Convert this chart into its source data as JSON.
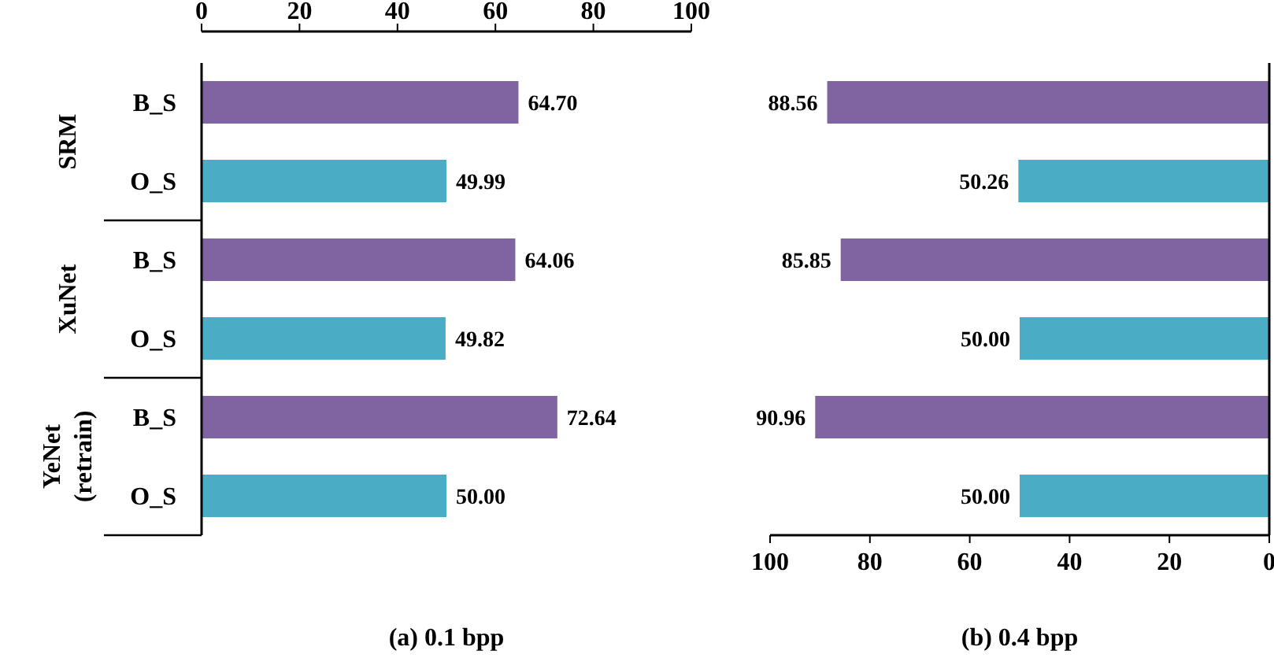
{
  "chart_data": [
    {
      "type": "bar",
      "orientation": "horizontal",
      "title": "(a) 0.1 bpp",
      "categories": [
        "B_S",
        "O_S",
        "B_S",
        "O_S",
        "B_S",
        "O_S"
      ],
      "values": [
        64.7,
        49.99,
        64.06,
        49.82,
        72.64,
        50.0
      ],
      "value_labels": [
        "64.70",
        "49.99",
        "64.06",
        "49.82",
        "72.64",
        "50.00"
      ],
      "colors": [
        "#8064a2",
        "#4bacc6",
        "#8064a2",
        "#4bacc6",
        "#8064a2",
        "#4bacc6"
      ],
      "xlim": [
        0,
        100
      ],
      "xticks": [
        0,
        20,
        40,
        60,
        80,
        100
      ],
      "annotations": [
        "SRM",
        "XuNet",
        "YeNet (retrain)"
      ]
    },
    {
      "type": "bar",
      "orientation": "horizontal",
      "title": "(b) 0.4 bpp",
      "categories": [
        null,
        null,
        null,
        null,
        null,
        null
      ],
      "tick_labels": "x",
      "values": [
        88.56,
        50.26,
        85.85,
        50.0,
        90.96,
        50.0
      ],
      "value_labels": [
        "88.56",
        "50.26",
        "85.85",
        "50.00",
        "90.96",
        "50.00"
      ],
      "colors": [
        "#8064a2",
        "#4bacc6",
        "#8064a2",
        "#4bacc6",
        "#8064a2",
        "#4bacc6"
      ],
      "xlim": [
        100,
        0
      ],
      "xticks": [
        100,
        80,
        60,
        40,
        20,
        0
      ]
    }
  ]
}
